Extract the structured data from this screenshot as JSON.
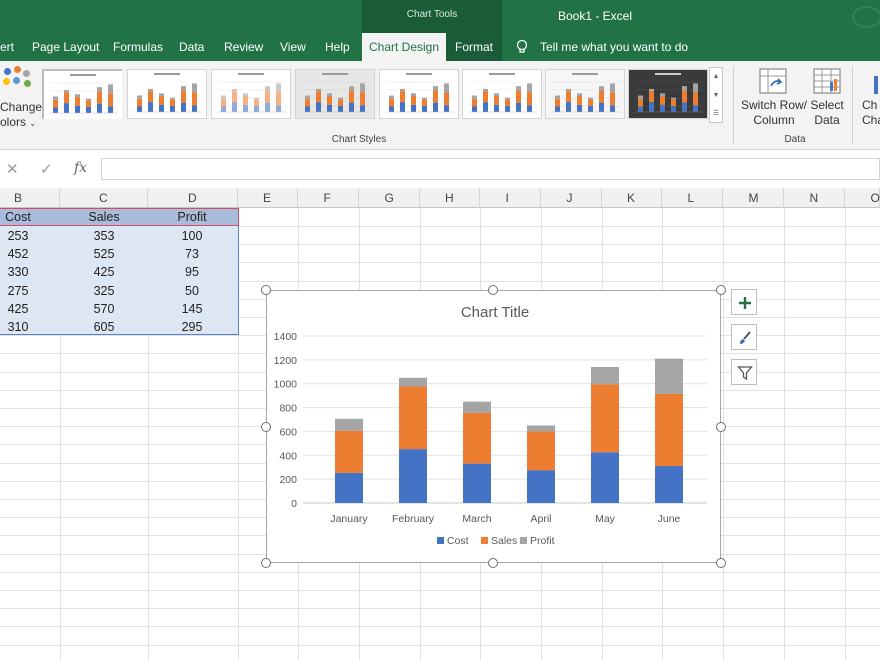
{
  "app": {
    "window_title": "Book1  -  Excel",
    "contextual_group": "Chart Tools"
  },
  "ribbon_tabs": [
    {
      "label": "ert"
    },
    {
      "label": "Page Layout"
    },
    {
      "label": "Formulas"
    },
    {
      "label": "Data"
    },
    {
      "label": "Review"
    },
    {
      "label": "View"
    },
    {
      "label": "Help"
    },
    {
      "label": "Chart Design",
      "active": true
    },
    {
      "label": "Format"
    },
    {
      "label": "Tell me what you want to do"
    }
  ],
  "ribbon": {
    "change_colors": {
      "line1": "Change",
      "line2": "olors"
    },
    "chart_styles_group": "Chart Styles",
    "switch_row_column": {
      "line1": "Switch Row/",
      "line2": "Column"
    },
    "select_data": {
      "line1": "Select",
      "line2": "Data"
    },
    "change_chart_type": {
      "line1": "Ch",
      "line2": "Cha"
    },
    "data_group": "Data"
  },
  "formula_bar": {
    "cancel": "✕",
    "enter": "✓",
    "fx": "fx",
    "value": ""
  },
  "columns": [
    "B",
    "C",
    "D",
    "E",
    "F",
    "G",
    "H",
    "I",
    "J",
    "K",
    "L",
    "M",
    "N",
    "O"
  ],
  "table": {
    "headers": [
      "Cost",
      "Sales",
      "Profit"
    ],
    "rows": [
      [
        "253",
        "353",
        "100"
      ],
      [
        "452",
        "525",
        "73"
      ],
      [
        "330",
        "425",
        "95"
      ],
      [
        "275",
        "325",
        "50"
      ],
      [
        "425",
        "570",
        "145"
      ],
      [
        "310",
        "605",
        "295"
      ]
    ]
  },
  "chart_data": {
    "type": "bar",
    "stacked": true,
    "title": "Chart Title",
    "categories": [
      "January",
      "February",
      "March",
      "April",
      "May",
      "June"
    ],
    "series": [
      {
        "name": "Cost",
        "values": [
          253,
          452,
          330,
          275,
          425,
          310
        ],
        "color": "#4472c4"
      },
      {
        "name": "Sales",
        "values": [
          353,
          525,
          425,
          325,
          570,
          605
        ],
        "color": "#ed7d31"
      },
      {
        "name": "Profit",
        "values": [
          100,
          73,
          95,
          50,
          145,
          295
        ],
        "color": "#a5a5a5"
      }
    ],
    "ylim": [
      0,
      1400
    ],
    "yticks": [
      0,
      200,
      400,
      600,
      800,
      1000,
      1200,
      1400
    ],
    "grid": true,
    "legend": "bottom"
  },
  "chart_side_buttons": [
    "chart-elements",
    "chart-styles",
    "chart-filters"
  ],
  "colors": {
    "excel_green": "#217346",
    "accent_blue": "#4472c4",
    "accent_orange": "#ed7d31",
    "accent_gray": "#a5a5a5"
  }
}
